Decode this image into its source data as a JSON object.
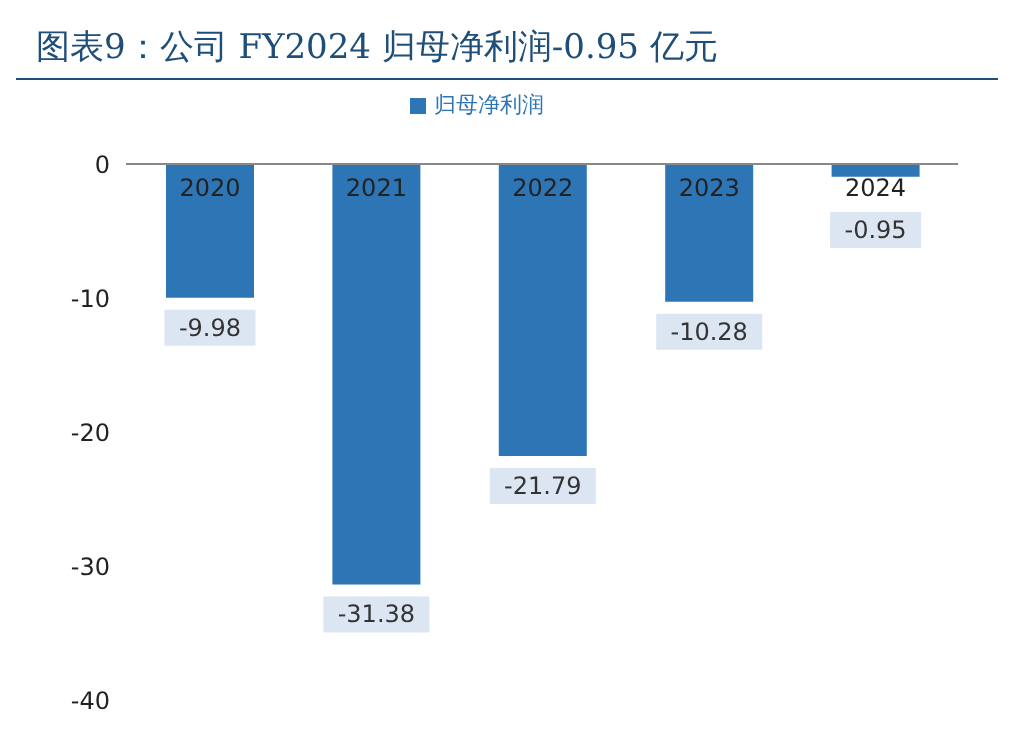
{
  "chart_data": {
    "type": "bar",
    "title": "图表9：公司 FY2024 归母净利润-0.95 亿元",
    "categories": [
      "2020",
      "2021",
      "2022",
      "2023",
      "2024"
    ],
    "series": [
      {
        "name": "归母净利润",
        "color": "#2e75b6",
        "values": [
          -9.98,
          -31.38,
          -21.79,
          -10.28,
          -0.95
        ]
      }
    ],
    "ylim": [
      -40,
      0
    ],
    "yticks": [
      -40,
      -30,
      -20,
      -10,
      0
    ],
    "data_labels": true,
    "legend": "top",
    "grid": false
  }
}
